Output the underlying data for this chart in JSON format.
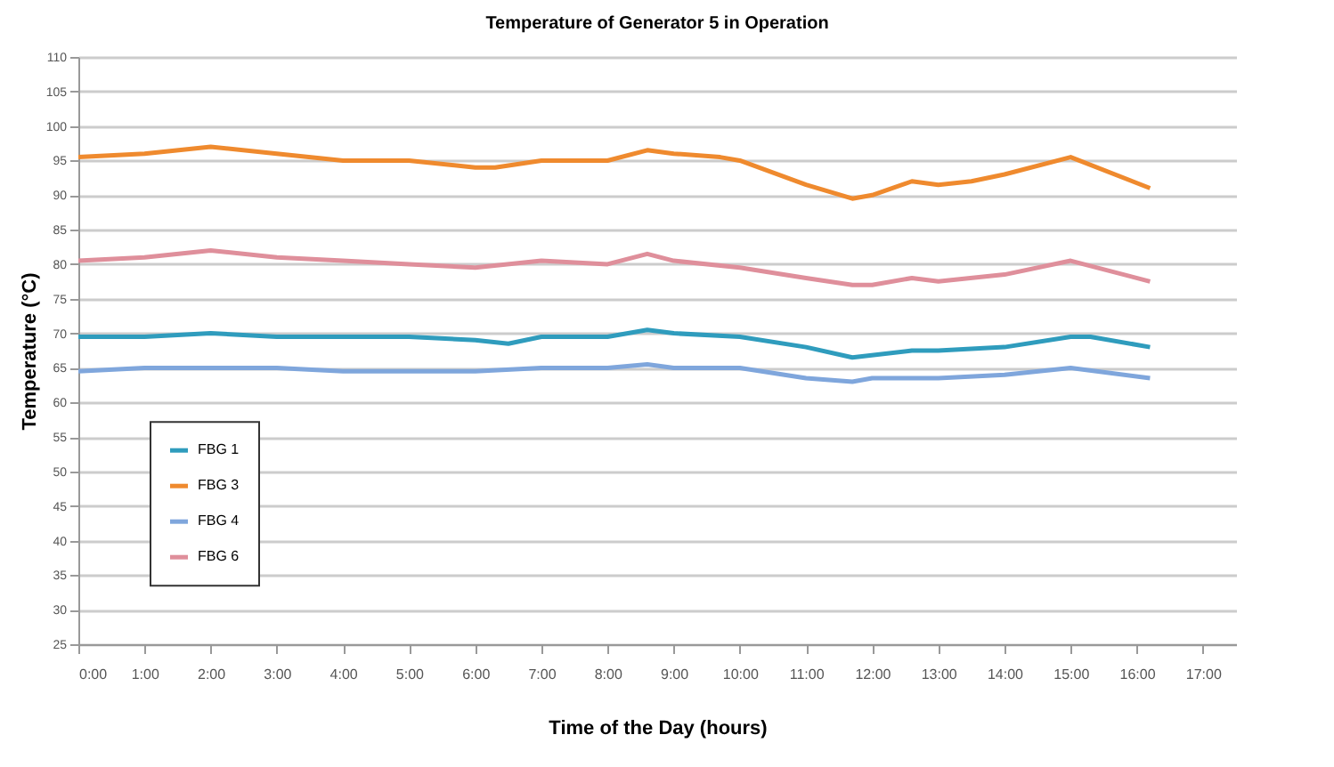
{
  "chart_data": {
    "type": "line",
    "title": "Temperature of Generator 5 in Operation",
    "xlabel": "Time of the Day (hours)",
    "ylabel": "Temperature (°C)",
    "xlim": [
      0,
      17.5
    ],
    "xticks": [
      {
        "value": 0,
        "label": "0:00"
      },
      {
        "value": 1,
        "label": "1:00"
      },
      {
        "value": 2,
        "label": "2:00"
      },
      {
        "value": 3,
        "label": "3:00"
      },
      {
        "value": 4,
        "label": "4:00"
      },
      {
        "value": 5,
        "label": "5:00"
      },
      {
        "value": 6,
        "label": "6:00"
      },
      {
        "value": 7,
        "label": "7:00"
      },
      {
        "value": 8,
        "label": "8:00"
      },
      {
        "value": 9,
        "label": "9:00"
      },
      {
        "value": 10,
        "label": "10:00"
      },
      {
        "value": 11,
        "label": "11:00"
      },
      {
        "value": 12,
        "label": "12:00"
      },
      {
        "value": 13,
        "label": "13:00"
      },
      {
        "value": 14,
        "label": "14:00"
      },
      {
        "value": 15,
        "label": "15:00"
      },
      {
        "value": 16,
        "label": "16:00"
      },
      {
        "value": 17,
        "label": "17:00"
      }
    ],
    "ylim": [
      25,
      110
    ],
    "yticks": [
      25,
      30,
      35,
      40,
      45,
      50,
      55,
      60,
      65,
      70,
      75,
      80,
      85,
      90,
      95,
      100,
      105,
      110
    ],
    "grid": "y",
    "legend": "left",
    "marker": "none",
    "line_style": "solid",
    "series": [
      {
        "name": "FBG 1",
        "color": "#2f9cbd",
        "x": [
          0,
          1,
          2,
          3,
          4,
          5,
          6,
          6.5,
          7,
          8,
          8.6,
          9,
          10,
          11,
          11.7,
          12.6,
          13,
          14,
          15,
          15.3,
          16.2
        ],
        "values": [
          69.5,
          69.5,
          70,
          69.5,
          69.5,
          69.5,
          69,
          68.5,
          69.5,
          69.5,
          70.5,
          70,
          69.5,
          68,
          66.5,
          67.5,
          67.5,
          68,
          69.5,
          69.5,
          68
        ]
      },
      {
        "name": "FBG 3",
        "color": "#ef8a2e",
        "x": [
          0,
          1,
          2,
          3,
          4,
          5,
          6,
          6.3,
          7,
          8,
          8.6,
          9,
          9.7,
          10,
          11,
          11.7,
          12,
          12.6,
          13,
          13.5,
          14,
          15,
          16.2
        ],
        "values": [
          95.5,
          96,
          97,
          96,
          95,
          95,
          94,
          94,
          95,
          95,
          96.5,
          96,
          95.5,
          95,
          91.5,
          89.5,
          90,
          92,
          91.5,
          92,
          93,
          95.5,
          91
        ]
      },
      {
        "name": "FBG 4",
        "color": "#7fa6dc",
        "x": [
          0,
          1,
          2,
          3,
          4,
          5,
          6,
          7,
          8,
          8.6,
          9,
          10,
          11,
          11.7,
          12,
          13,
          14,
          15,
          16.2
        ],
        "values": [
          64.5,
          65,
          65,
          65,
          64.5,
          64.5,
          64.5,
          65,
          65,
          65.5,
          65,
          65,
          63.5,
          63,
          63.5,
          63.5,
          64,
          65,
          63.5
        ]
      },
      {
        "name": "FBG 6",
        "color": "#df8f9b",
        "x": [
          0,
          1,
          2,
          3,
          4,
          5,
          6,
          7,
          8,
          8.6,
          9,
          10,
          11,
          11.7,
          12,
          12.6,
          13,
          14,
          15,
          16.2
        ],
        "values": [
          80.5,
          81,
          82,
          81,
          80.5,
          80,
          79.5,
          80.5,
          80,
          81.5,
          80.5,
          79.5,
          78,
          77,
          77,
          78,
          77.5,
          78.5,
          80.5,
          77.5
        ]
      }
    ]
  }
}
